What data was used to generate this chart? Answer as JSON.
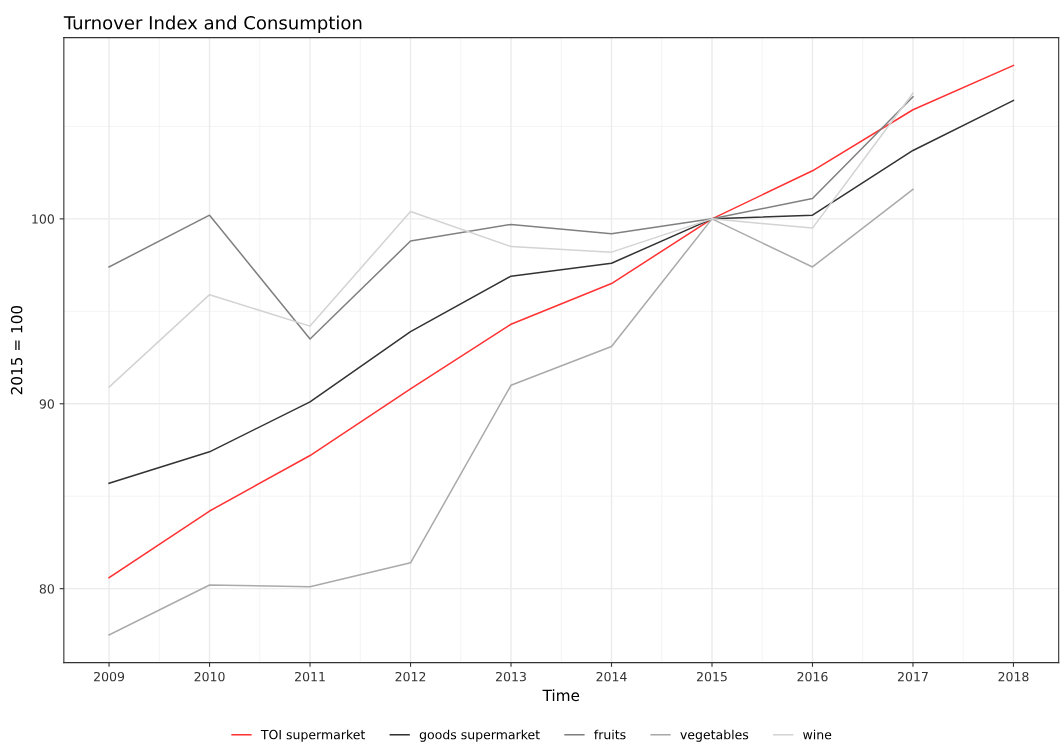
{
  "chart_data": {
    "type": "line",
    "title": "Turnover Index and Consumption",
    "xlabel": "Time",
    "ylabel": "2015 = 100",
    "x": [
      2009,
      2010,
      2011,
      2012,
      2013,
      2014,
      2015,
      2016,
      2017,
      2018
    ],
    "series": [
      {
        "name": "TOI supermarket",
        "color": "#ff3333",
        "values": [
          80.6,
          84.2,
          87.2,
          90.8,
          94.3,
          96.5,
          100,
          102.6,
          105.9,
          108.3
        ]
      },
      {
        "name": "goods supermarket",
        "color": "#333333",
        "values": [
          85.7,
          87.4,
          90.1,
          93.9,
          96.9,
          97.6,
          100,
          100.2,
          103.7,
          106.4
        ]
      },
      {
        "name": "fruits",
        "color": "#808080",
        "values": [
          97.4,
          100.2,
          93.5,
          98.8,
          99.7,
          99.2,
          100,
          101.1,
          106.6,
          null
        ]
      },
      {
        "name": "vegetables",
        "color": "#aaaaaa",
        "values": [
          77.5,
          80.2,
          80.1,
          81.4,
          91.0,
          93.1,
          100,
          97.4,
          101.6,
          null
        ]
      },
      {
        "name": "wine",
        "color": "#d3d3d3",
        "values": [
          90.9,
          95.9,
          94.2,
          100.4,
          98.5,
          98.2,
          100,
          99.5,
          106.8,
          null
        ]
      }
    ],
    "xlim": [
      2008.55,
      2018.45
    ],
    "xticks": [
      2009,
      2010,
      2011,
      2012,
      2013,
      2014,
      2015,
      2016,
      2017,
      2018
    ],
    "ylim": [
      76,
      109.8
    ],
    "yticks": [
      80,
      90,
      100
    ],
    "grid": true,
    "legend": "bottom",
    "marker": "none",
    "line_style": "solid"
  }
}
